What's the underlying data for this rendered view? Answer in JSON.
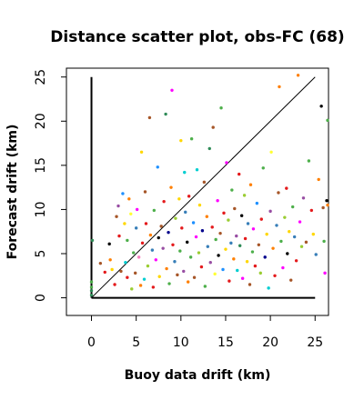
{
  "chart_data": {
    "type": "scatter",
    "title": "Distance scatter plot, obs-FC (68)",
    "xlabel": "Buoy data drift (km)",
    "ylabel": "Forecast drift (km)",
    "xlim": [
      -2.8,
      26.5
    ],
    "ylim": [
      -2,
      26
    ],
    "xticks": [
      0,
      5,
      10,
      15,
      20,
      25
    ],
    "yticks": [
      0,
      5,
      10,
      15,
      20,
      25
    ],
    "grid": false,
    "legend": "none",
    "reference_lines": [
      {
        "kind": "diagonal",
        "from": [
          0,
          0
        ],
        "to": [
          25,
          25
        ]
      },
      {
        "kind": "y-axis-bar",
        "from": [
          0,
          0
        ],
        "to": [
          0,
          25
        ]
      },
      {
        "kind": "x-axis-bar",
        "from": [
          0,
          0
        ],
        "to": [
          25,
          0
        ]
      }
    ],
    "palette": [
      "#e41a1c",
      "#377eb8",
      "#4daf4a",
      "#984ea3",
      "#ff7f00",
      "#ffff33",
      "#a65628",
      "#f781bf",
      "#00ced1",
      "#000000",
      "#ff00ff",
      "#9acd32",
      "#1e90ff",
      "#ffd700",
      "#8b0000",
      "#00008b"
    ],
    "points": [
      [
        0.0,
        0.3,
        "#2e8b57"
      ],
      [
        0.0,
        0.8,
        "#2e8b57"
      ],
      [
        0.0,
        1.2,
        "#4daf4a"
      ],
      [
        0.0,
        1.8,
        "#4daf4a"
      ],
      [
        0.1,
        6.5,
        "#2e8b57"
      ],
      [
        1.0,
        3.9,
        "#a65628"
      ],
      [
        1.5,
        2.9,
        "#e41a1c"
      ],
      [
        2.0,
        6.1,
        "#000000"
      ],
      [
        2.1,
        4.3,
        "#ff7f00"
      ],
      [
        2.3,
        3.2,
        "#ffd700"
      ],
      [
        2.6,
        1.5,
        "#e41a1c"
      ],
      [
        2.8,
        9.2,
        "#a65628"
      ],
      [
        3.0,
        10.4,
        "#984ea3"
      ],
      [
        3.1,
        7.0,
        "#e41a1c"
      ],
      [
        3.3,
        3.0,
        "#a65628"
      ],
      [
        3.5,
        11.8,
        "#1e90ff"
      ],
      [
        3.7,
        8.4,
        "#ffd700"
      ],
      [
        3.8,
        4.0,
        "#00ced1"
      ],
      [
        4.0,
        6.5,
        "#4daf4a"
      ],
      [
        4.0,
        2.3,
        "#e41a1c"
      ],
      [
        4.2,
        11.2,
        "#ff7f00"
      ],
      [
        4.4,
        9.5,
        "#ffff33"
      ],
      [
        4.5,
        1.0,
        "#9acd32"
      ],
      [
        4.7,
        5.1,
        "#4daf4a"
      ],
      [
        4.9,
        2.8,
        "#a65628"
      ],
      [
        5.0,
        7.9,
        "#377eb8"
      ],
      [
        5.1,
        10.0,
        "#ff00ff"
      ],
      [
        5.3,
        4.6,
        "#f781bf"
      ],
      [
        5.5,
        1.4,
        "#ff7f00"
      ],
      [
        5.6,
        16.5,
        "#ffd700"
      ],
      [
        5.7,
        6.2,
        "#e41a1c"
      ],
      [
        5.9,
        2.1,
        "#00ced1"
      ],
      [
        6.0,
        12.0,
        "#a65628"
      ],
      [
        6.1,
        8.4,
        "#e41a1c"
      ],
      [
        6.3,
        3.6,
        "#9acd32"
      ],
      [
        6.5,
        20.4,
        "#a65628"
      ],
      [
        6.6,
        7.1,
        "#ff7f00"
      ],
      [
        6.8,
        5.4,
        "#377eb8"
      ],
      [
        6.9,
        1.2,
        "#e41a1c"
      ],
      [
        7.0,
        9.9,
        "#4daf4a"
      ],
      [
        7.2,
        4.3,
        "#ff00ff"
      ],
      [
        7.4,
        14.8,
        "#1e90ff"
      ],
      [
        7.5,
        6.8,
        "#000000"
      ],
      [
        7.6,
        2.4,
        "#ffd700"
      ],
      [
        7.8,
        8.1,
        "#a65628"
      ],
      [
        8.0,
        5.6,
        "#984ea3"
      ],
      [
        8.1,
        10.9,
        "#e41a1c"
      ],
      [
        8.3,
        20.8,
        "#2e8b57"
      ],
      [
        8.4,
        3.3,
        "#ff7f00"
      ],
      [
        8.6,
        7.4,
        "#00008b"
      ],
      [
        8.7,
        1.6,
        "#4daf4a"
      ],
      [
        8.9,
        12.5,
        "#ff7f00"
      ],
      [
        9.0,
        23.5,
        "#ff00ff"
      ],
      [
        9.1,
        6.0,
        "#e41a1c"
      ],
      [
        9.3,
        4.1,
        "#377eb8"
      ],
      [
        9.4,
        9.0,
        "#9acd32"
      ],
      [
        9.6,
        2.6,
        "#a65628"
      ],
      [
        9.8,
        11.2,
        "#ffd700"
      ],
      [
        9.9,
        5.3,
        "#4daf4a"
      ],
      [
        10.0,
        17.8,
        "#ffd700"
      ],
      [
        10.1,
        7.9,
        "#e41a1c"
      ],
      [
        10.3,
        3.0,
        "#984ea3"
      ],
      [
        10.4,
        14.2,
        "#00ced1"
      ],
      [
        10.5,
        9.7,
        "#377eb8"
      ],
      [
        10.7,
        6.3,
        "#000000"
      ],
      [
        10.8,
        1.8,
        "#ff7f00"
      ],
      [
        10.9,
        11.5,
        "#e41a1c"
      ],
      [
        11.1,
        4.6,
        "#4daf4a"
      ],
      [
        11.2,
        18.0,
        "#4daf4a"
      ],
      [
        11.4,
        8.5,
        "#1e90ff"
      ],
      [
        11.5,
        2.3,
        "#a65628"
      ],
      [
        11.7,
        6.9,
        "#ff00ff"
      ],
      [
        11.8,
        14.5,
        "#00ced1"
      ],
      [
        12.0,
        5.1,
        "#9acd32"
      ],
      [
        12.1,
        10.5,
        "#ffd700"
      ],
      [
        12.3,
        3.5,
        "#e41a1c"
      ],
      [
        12.4,
        7.6,
        "#00008b"
      ],
      [
        12.6,
        13.1,
        "#a65628"
      ],
      [
        12.7,
        1.3,
        "#4daf4a"
      ],
      [
        12.9,
        9.2,
        "#ff7f00"
      ],
      [
        13.0,
        5.8,
        "#377eb8"
      ],
      [
        13.2,
        16.9,
        "#2e8b57"
      ],
      [
        13.3,
        4.0,
        "#984ea3"
      ],
      [
        13.5,
        8.0,
        "#e41a1c"
      ],
      [
        13.6,
        19.3,
        "#a65628"
      ],
      [
        13.8,
        2.7,
        "#ffff33"
      ],
      [
        13.9,
        6.6,
        "#4daf4a"
      ],
      [
        14.1,
        11.0,
        "#ff00ff"
      ],
      [
        14.2,
        4.8,
        "#000000"
      ],
      [
        14.4,
        7.3,
        "#a65628"
      ],
      [
        14.5,
        21.5,
        "#4daf4a"
      ],
      [
        14.7,
        3.2,
        "#1e90ff"
      ],
      [
        14.8,
        9.6,
        "#e41a1c"
      ],
      [
        15.0,
        5.5,
        "#ffd700"
      ],
      [
        15.1,
        15.3,
        "#ff00ff"
      ],
      [
        15.3,
        8.8,
        "#9acd32"
      ],
      [
        15.4,
        1.9,
        "#e41a1c"
      ],
      [
        15.6,
        6.2,
        "#377eb8"
      ],
      [
        15.7,
        12.2,
        "#4daf4a"
      ],
      [
        15.9,
        4.4,
        "#ff7f00"
      ],
      [
        16.0,
        10.1,
        "#a65628"
      ],
      [
        16.2,
        7.0,
        "#984ea3"
      ],
      [
        16.3,
        3.1,
        "#00ced1"
      ],
      [
        16.5,
        14.0,
        "#e41a1c"
      ],
      [
        16.6,
        5.9,
        "#2e8b57"
      ],
      [
        16.8,
        9.3,
        "#000000"
      ],
      [
        16.9,
        2.2,
        "#ff00ff"
      ],
      [
        17.1,
        11.6,
        "#9acd32"
      ],
      [
        17.2,
        6.7,
        "#e41a1c"
      ],
      [
        17.4,
        4.1,
        "#ffd700"
      ],
      [
        17.5,
        8.4,
        "#377eb8"
      ],
      [
        17.7,
        1.5,
        "#a65628"
      ],
      [
        17.8,
        12.8,
        "#ff7f00"
      ],
      [
        18.0,
        5.2,
        "#4daf4a"
      ],
      [
        18.1,
        7.8,
        "#ff00ff"
      ],
      [
        18.3,
        3.6,
        "#e41a1c"
      ],
      [
        18.5,
        10.7,
        "#1e90ff"
      ],
      [
        18.7,
        6.0,
        "#a65628"
      ],
      [
        18.9,
        2.8,
        "#9acd32"
      ],
      [
        19.0,
        8.9,
        "#e41a1c"
      ],
      [
        19.2,
        14.7,
        "#4daf4a"
      ],
      [
        19.4,
        4.6,
        "#00008b"
      ],
      [
        19.6,
        7.2,
        "#ffd700"
      ],
      [
        19.8,
        1.1,
        "#00ced1"
      ],
      [
        20.0,
        9.8,
        "#984ea3"
      ],
      [
        20.1,
        16.5,
        "#ffff33"
      ],
      [
        20.3,
        5.6,
        "#ff7f00"
      ],
      [
        20.5,
        2.5,
        "#e41a1c"
      ],
      [
        20.7,
        8.2,
        "#377eb8"
      ],
      [
        20.9,
        11.9,
        "#a65628"
      ],
      [
        21.0,
        23.9,
        "#ff7f00"
      ],
      [
        21.2,
        6.4,
        "#4daf4a"
      ],
      [
        21.4,
        3.4,
        "#ff00ff"
      ],
      [
        21.6,
        9.1,
        "#9acd32"
      ],
      [
        21.8,
        12.4,
        "#e41a1c"
      ],
      [
        21.9,
        5.0,
        "#000000"
      ],
      [
        22.1,
        7.5,
        "#ffd700"
      ],
      [
        22.3,
        2.0,
        "#a65628"
      ],
      [
        22.5,
        10.3,
        "#4daf4a"
      ],
      [
        22.7,
        6.9,
        "#377eb8"
      ],
      [
        22.9,
        4.2,
        "#e41a1c"
      ],
      [
        23.1,
        25.2,
        "#ff7f00"
      ],
      [
        23.3,
        8.6,
        "#ff00ff"
      ],
      [
        23.5,
        5.8,
        "#9acd32"
      ],
      [
        23.7,
        11.3,
        "#984ea3"
      ],
      [
        24.0,
        6.3,
        "#a65628"
      ],
      [
        24.3,
        15.5,
        "#4daf4a"
      ],
      [
        24.6,
        9.9,
        "#e41a1c"
      ],
      [
        24.8,
        7.2,
        "#ffd700"
      ],
      [
        25.1,
        4.9,
        "#377eb8"
      ],
      [
        25.4,
        13.4,
        "#ff7f00"
      ],
      [
        25.7,
        21.7,
        "#000000"
      ],
      [
        25.9,
        10.2,
        "#a65628"
      ],
      [
        26.0,
        6.4,
        "#4daf4a"
      ],
      [
        26.1,
        2.8,
        "#ff00ff"
      ],
      [
        26.3,
        11.0,
        "#000000"
      ],
      [
        26.4,
        20.1,
        "#4daf4a"
      ],
      [
        26.4,
        10.5,
        "#ff7f00"
      ]
    ]
  }
}
